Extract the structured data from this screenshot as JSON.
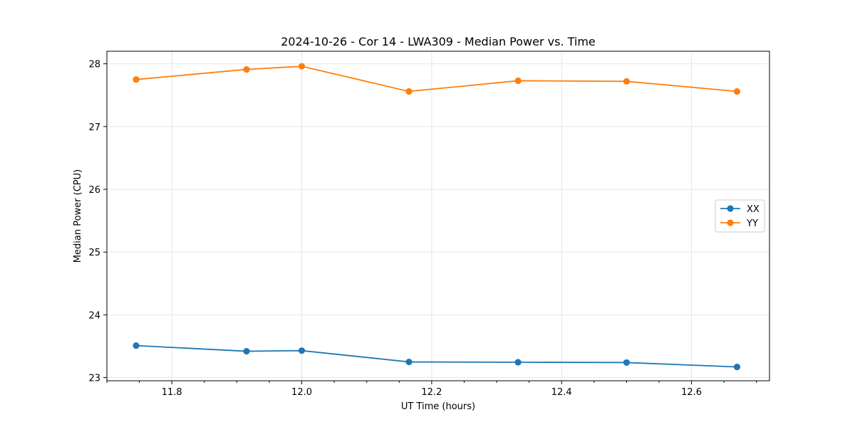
{
  "chart_data": {
    "type": "line",
    "title": "2024-10-26 - Cor 14 - LWA309 - Median Power vs. Time",
    "xlabel": "UT Time (hours)",
    "ylabel": "Median Power (CPU)",
    "xlim": [
      11.7,
      12.72
    ],
    "ylim": [
      22.95,
      28.2
    ],
    "xticks": [
      11.8,
      12.0,
      12.2,
      12.4,
      12.6
    ],
    "xtick_labels": [
      "11.8",
      "12.0",
      "12.2",
      "12.4",
      "12.6"
    ],
    "yticks": [
      23,
      24,
      25,
      26,
      27,
      28
    ],
    "ytick_labels": [
      "23",
      "24",
      "25",
      "26",
      "27",
      "28"
    ],
    "grid": true,
    "legend_position": "center-right",
    "x": [
      11.745,
      11.915,
      12.0,
      12.165,
      12.333,
      12.5,
      12.67
    ],
    "series": [
      {
        "name": "XX",
        "color": "#1f77b4",
        "values": [
          23.51,
          23.42,
          23.43,
          23.25,
          23.245,
          23.24,
          23.17
        ]
      },
      {
        "name": "YY",
        "color": "#ff7f0e",
        "values": [
          27.75,
          27.91,
          27.96,
          27.56,
          27.73,
          27.72,
          27.56
        ]
      }
    ]
  }
}
